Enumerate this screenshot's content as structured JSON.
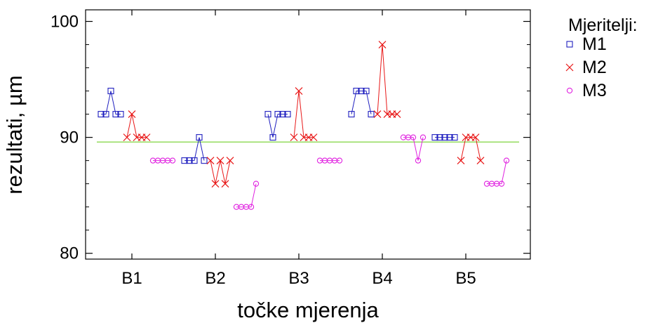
{
  "chart_data": {
    "type": "scatter",
    "xlabel": "točke mjerenja",
    "ylabel": "rezultati, µm",
    "ylim": [
      79.5,
      101
    ],
    "yticks": [
      80,
      90,
      100
    ],
    "categories": [
      "B1",
      "B2",
      "B3",
      "B4",
      "B5"
    ],
    "reference_line": {
      "y": 89.6,
      "color": "#7fd43f"
    },
    "grid": false,
    "legend": {
      "title": "Mjeritelji:",
      "position": "outside-top-right"
    },
    "series": [
      {
        "name": "M1",
        "marker": "square",
        "color": "#1f1fbf",
        "groups": [
          [
            92,
            92,
            94,
            92,
            92
          ],
          [
            88,
            88,
            88,
            90,
            88
          ],
          [
            92,
            90,
            92,
            92,
            92
          ],
          [
            92,
            94,
            94,
            94,
            92
          ],
          [
            90,
            90,
            90,
            90,
            90
          ]
        ]
      },
      {
        "name": "M2",
        "marker": "x",
        "color": "#e81818",
        "groups": [
          [
            90,
            92,
            90,
            90,
            90
          ],
          [
            88,
            86,
            88,
            86,
            88
          ],
          [
            90,
            94,
            90,
            90,
            90
          ],
          [
            92,
            98,
            92,
            92,
            92
          ],
          [
            88,
            90,
            90,
            90,
            88
          ]
        ]
      },
      {
        "name": "M3",
        "marker": "circle",
        "color": "#e020e0",
        "groups": [
          [
            88,
            88,
            88,
            88,
            88
          ],
          [
            84,
            84,
            84,
            84,
            86
          ],
          [
            88,
            88,
            88,
            88,
            88
          ],
          [
            90,
            90,
            90,
            88,
            90
          ],
          [
            86,
            86,
            86,
            86,
            88
          ]
        ]
      }
    ]
  }
}
